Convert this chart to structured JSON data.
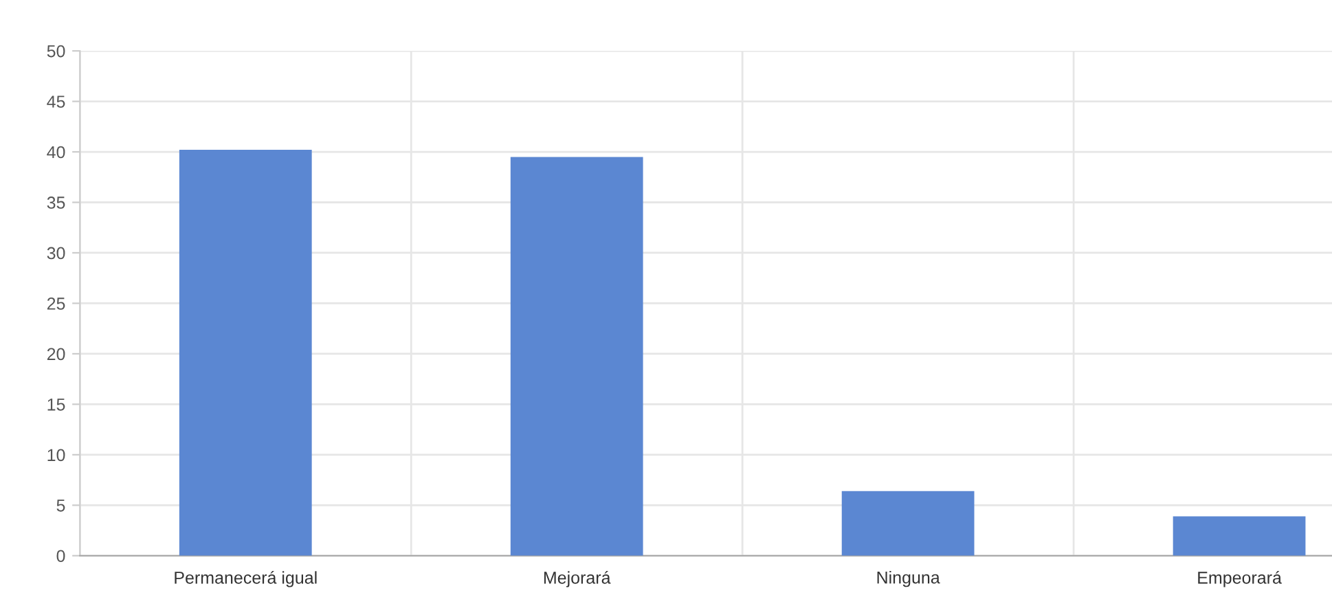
{
  "chart_data": {
    "type": "bar",
    "categories": [
      "Permanecerá igual",
      "Mejorará",
      "Ninguna",
      "Empeorará"
    ],
    "values": [
      40.2,
      39.5,
      6.4,
      3.9
    ],
    "color": "#5b87d2",
    "ylim": [
      0,
      50
    ],
    "yticks": [
      0,
      5,
      10,
      15,
      20,
      25,
      30,
      35,
      40,
      45,
      50
    ],
    "grid": true,
    "legend": false
  }
}
